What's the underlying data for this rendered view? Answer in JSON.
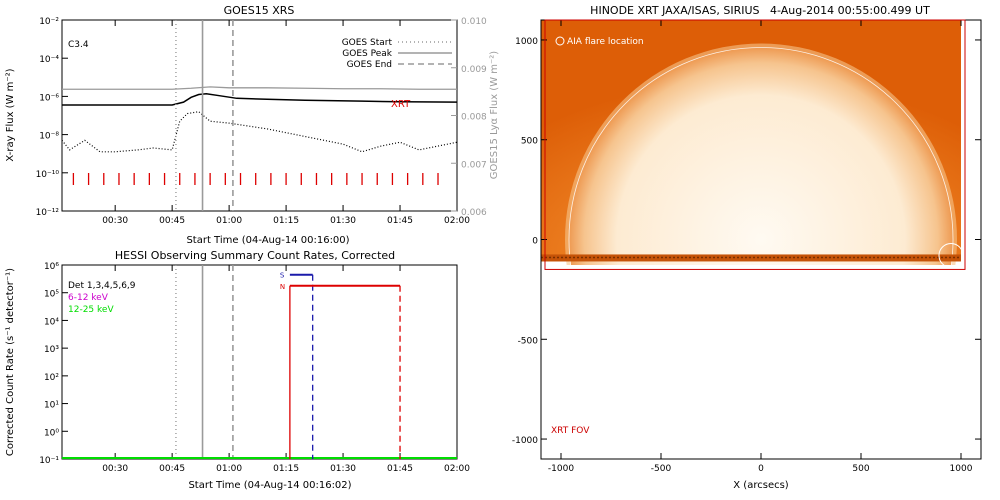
{
  "colors": {
    "axis": "#000000",
    "grey": "#9a9a9a",
    "red": "#dd0000",
    "blue": "#1a1aaa",
    "magenta": "#cc00cc",
    "green": "#00dd00",
    "sun_dark": "#e0620a",
    "sun_light": "#fff4e4",
    "sun_edge": "#b84300",
    "fov": "#cc0000"
  },
  "chart_data": [
    {
      "type": "line",
      "title": "GOES15 XRS",
      "xlabel": "Start Time (04-Aug-14 00:16:00)",
      "ylabel": "X-ray Flux (W m⁻²)",
      "y2label": "GOES15 Lyα Flux (W m⁻²)",
      "xlim": [
        16,
        120
      ],
      "ylim_log": [
        -12,
        -2
      ],
      "y2lim": [
        0.006,
        0.01
      ],
      "x_ticks": [
        30,
        45,
        60,
        75,
        90,
        105,
        120
      ],
      "x_tick_labels": [
        "00:30",
        "00:45",
        "01:00",
        "01:15",
        "01:30",
        "01:45",
        "02:00"
      ],
      "y_tick_labels": [
        "10⁻¹²",
        "10⁻¹⁰",
        "10⁻⁸",
        "10⁻⁶",
        "10⁻⁴",
        "10⁻²"
      ],
      "y_tick_exps": [
        -12,
        -10,
        -8,
        -6,
        -4,
        -2
      ],
      "y2_ticks": [
        0.006,
        0.007,
        0.008,
        0.009,
        0.01
      ],
      "y2_tick_labels": [
        "0.006",
        "0.007",
        "0.008",
        "0.009",
        "0.010"
      ],
      "class_label": "C3.4",
      "xrt_label": "XRT",
      "legend": [
        {
          "label": "GOES Start",
          "style": "dotted"
        },
        {
          "label": "GOES Peak",
          "style": "solid"
        },
        {
          "label": "GOES End",
          "style": "dashed"
        }
      ],
      "goes_start": 46,
      "goes_peak": 53,
      "goes_end": 61,
      "series": [
        {
          "style": "solid-black",
          "log_x": [
            16,
            30,
            45,
            48,
            50,
            52,
            54,
            57,
            62,
            70,
            80,
            95,
            105,
            120
          ],
          "log_y": [
            -6.45,
            -6.45,
            -6.45,
            -6.3,
            -6.05,
            -5.9,
            -5.86,
            -5.95,
            -6.1,
            -6.15,
            -6.2,
            -6.25,
            -6.28,
            -6.3
          ]
        },
        {
          "style": "dotted-black",
          "log_x": [
            16,
            18,
            22,
            26,
            30,
            36,
            40,
            45,
            47,
            49,
            52,
            55,
            60,
            70,
            80,
            90,
            95,
            100,
            105,
            110,
            115,
            120
          ],
          "log_y": [
            -8.3,
            -8.8,
            -8.3,
            -8.9,
            -8.9,
            -8.8,
            -8.7,
            -8.8,
            -7.3,
            -6.9,
            -6.8,
            -7.3,
            -7.4,
            -7.7,
            -8.1,
            -8.5,
            -8.9,
            -8.6,
            -8.4,
            -8.8,
            -8.6,
            -8.4
          ]
        },
        {
          "style": "grey-lya",
          "x": [
            16,
            30,
            45,
            50,
            55,
            60,
            70,
            80,
            90,
            100,
            110,
            120
          ],
          "y": [
            0.00855,
            0.00855,
            0.00855,
            0.00857,
            0.0086,
            0.00858,
            0.00858,
            0.00857,
            0.00856,
            0.00856,
            0.00855,
            0.00855
          ]
        }
      ],
      "xrt_times": [
        19,
        23,
        27,
        31,
        35,
        39,
        43,
        47,
        51,
        55,
        59,
        63,
        67,
        71,
        75,
        79,
        83,
        87,
        91,
        95,
        99,
        103,
        107,
        111,
        115
      ]
    },
    {
      "type": "line",
      "title": "HESSI Observing Summary Count Rates, Corrected",
      "xlabel": "Start Time (04-Aug-14 00:16:02)",
      "ylabel": "Corrected Count Rate (s⁻¹ detector⁻¹)",
      "xlim": [
        16,
        120
      ],
      "ylim_log": [
        -1,
        6
      ],
      "x_ticks": [
        30,
        45,
        60,
        75,
        90,
        105,
        120
      ],
      "x_tick_labels": [
        "00:30",
        "00:45",
        "01:00",
        "01:15",
        "01:30",
        "01:45",
        "02:00"
      ],
      "y_tick_labels": [
        "10⁻¹",
        "10⁰",
        "10¹",
        "10²",
        "10³",
        "10⁴",
        "10⁵",
        "10⁶"
      ],
      "y_tick_exps": [
        -1,
        0,
        1,
        2,
        3,
        4,
        5,
        6
      ],
      "legend": [
        {
          "label": "Det 1,3,4,5,6,9",
          "color": "#000000"
        },
        {
          "label": "6-12 keV",
          "color": "#cc00cc"
        },
        {
          "label": "12-25 keV",
          "color": "#00dd00"
        }
      ],
      "goes_start": 46,
      "goes_peak": 53,
      "goes_end": 61,
      "markers": [
        {
          "label": "S",
          "x_start": 76,
          "x_end": 82,
          "log_y": 5.65,
          "color": "#1a1aaa"
        },
        {
          "label": "N",
          "x_start": 76,
          "x_end": 105,
          "log_y": 5.25,
          "color": "#dd0000"
        }
      ],
      "baseline_log_y": -1,
      "red_solid_x": 76,
      "blue_dash_x": 82,
      "red_dash_x": 105
    },
    {
      "type": "image",
      "title": "HINODE XRT JAXA/ISAS, SIRIUS   4-Aug-2014 00:55:00.499 UT",
      "xlabel": "X (arcsecs)",
      "xlim": [
        -1100,
        1100
      ],
      "ylim": [
        -1100,
        1100
      ],
      "x_ticks": [
        -1000,
        -500,
        0,
        500,
        1000
      ],
      "x_tick_labels": [
        "-1000",
        "-500",
        "0",
        "500",
        "1000"
      ],
      "y_ticks": [
        -1000,
        -500,
        0,
        500,
        1000
      ],
      "y_tick_labels": [
        "-1000",
        "-500",
        "0",
        "500",
        "1000"
      ],
      "aia_label": "AIA flare location",
      "fov_label": "XRT FOV",
      "disk_radius": 960,
      "image_x": [
        -1100,
        1010
      ],
      "image_y": [
        -110,
        1100
      ],
      "fov_x": [
        -1080,
        1020
      ],
      "fov_y": [
        -150,
        1100
      ],
      "flare_center": [
        950,
        -80
      ],
      "flare_radius": 60
    }
  ]
}
